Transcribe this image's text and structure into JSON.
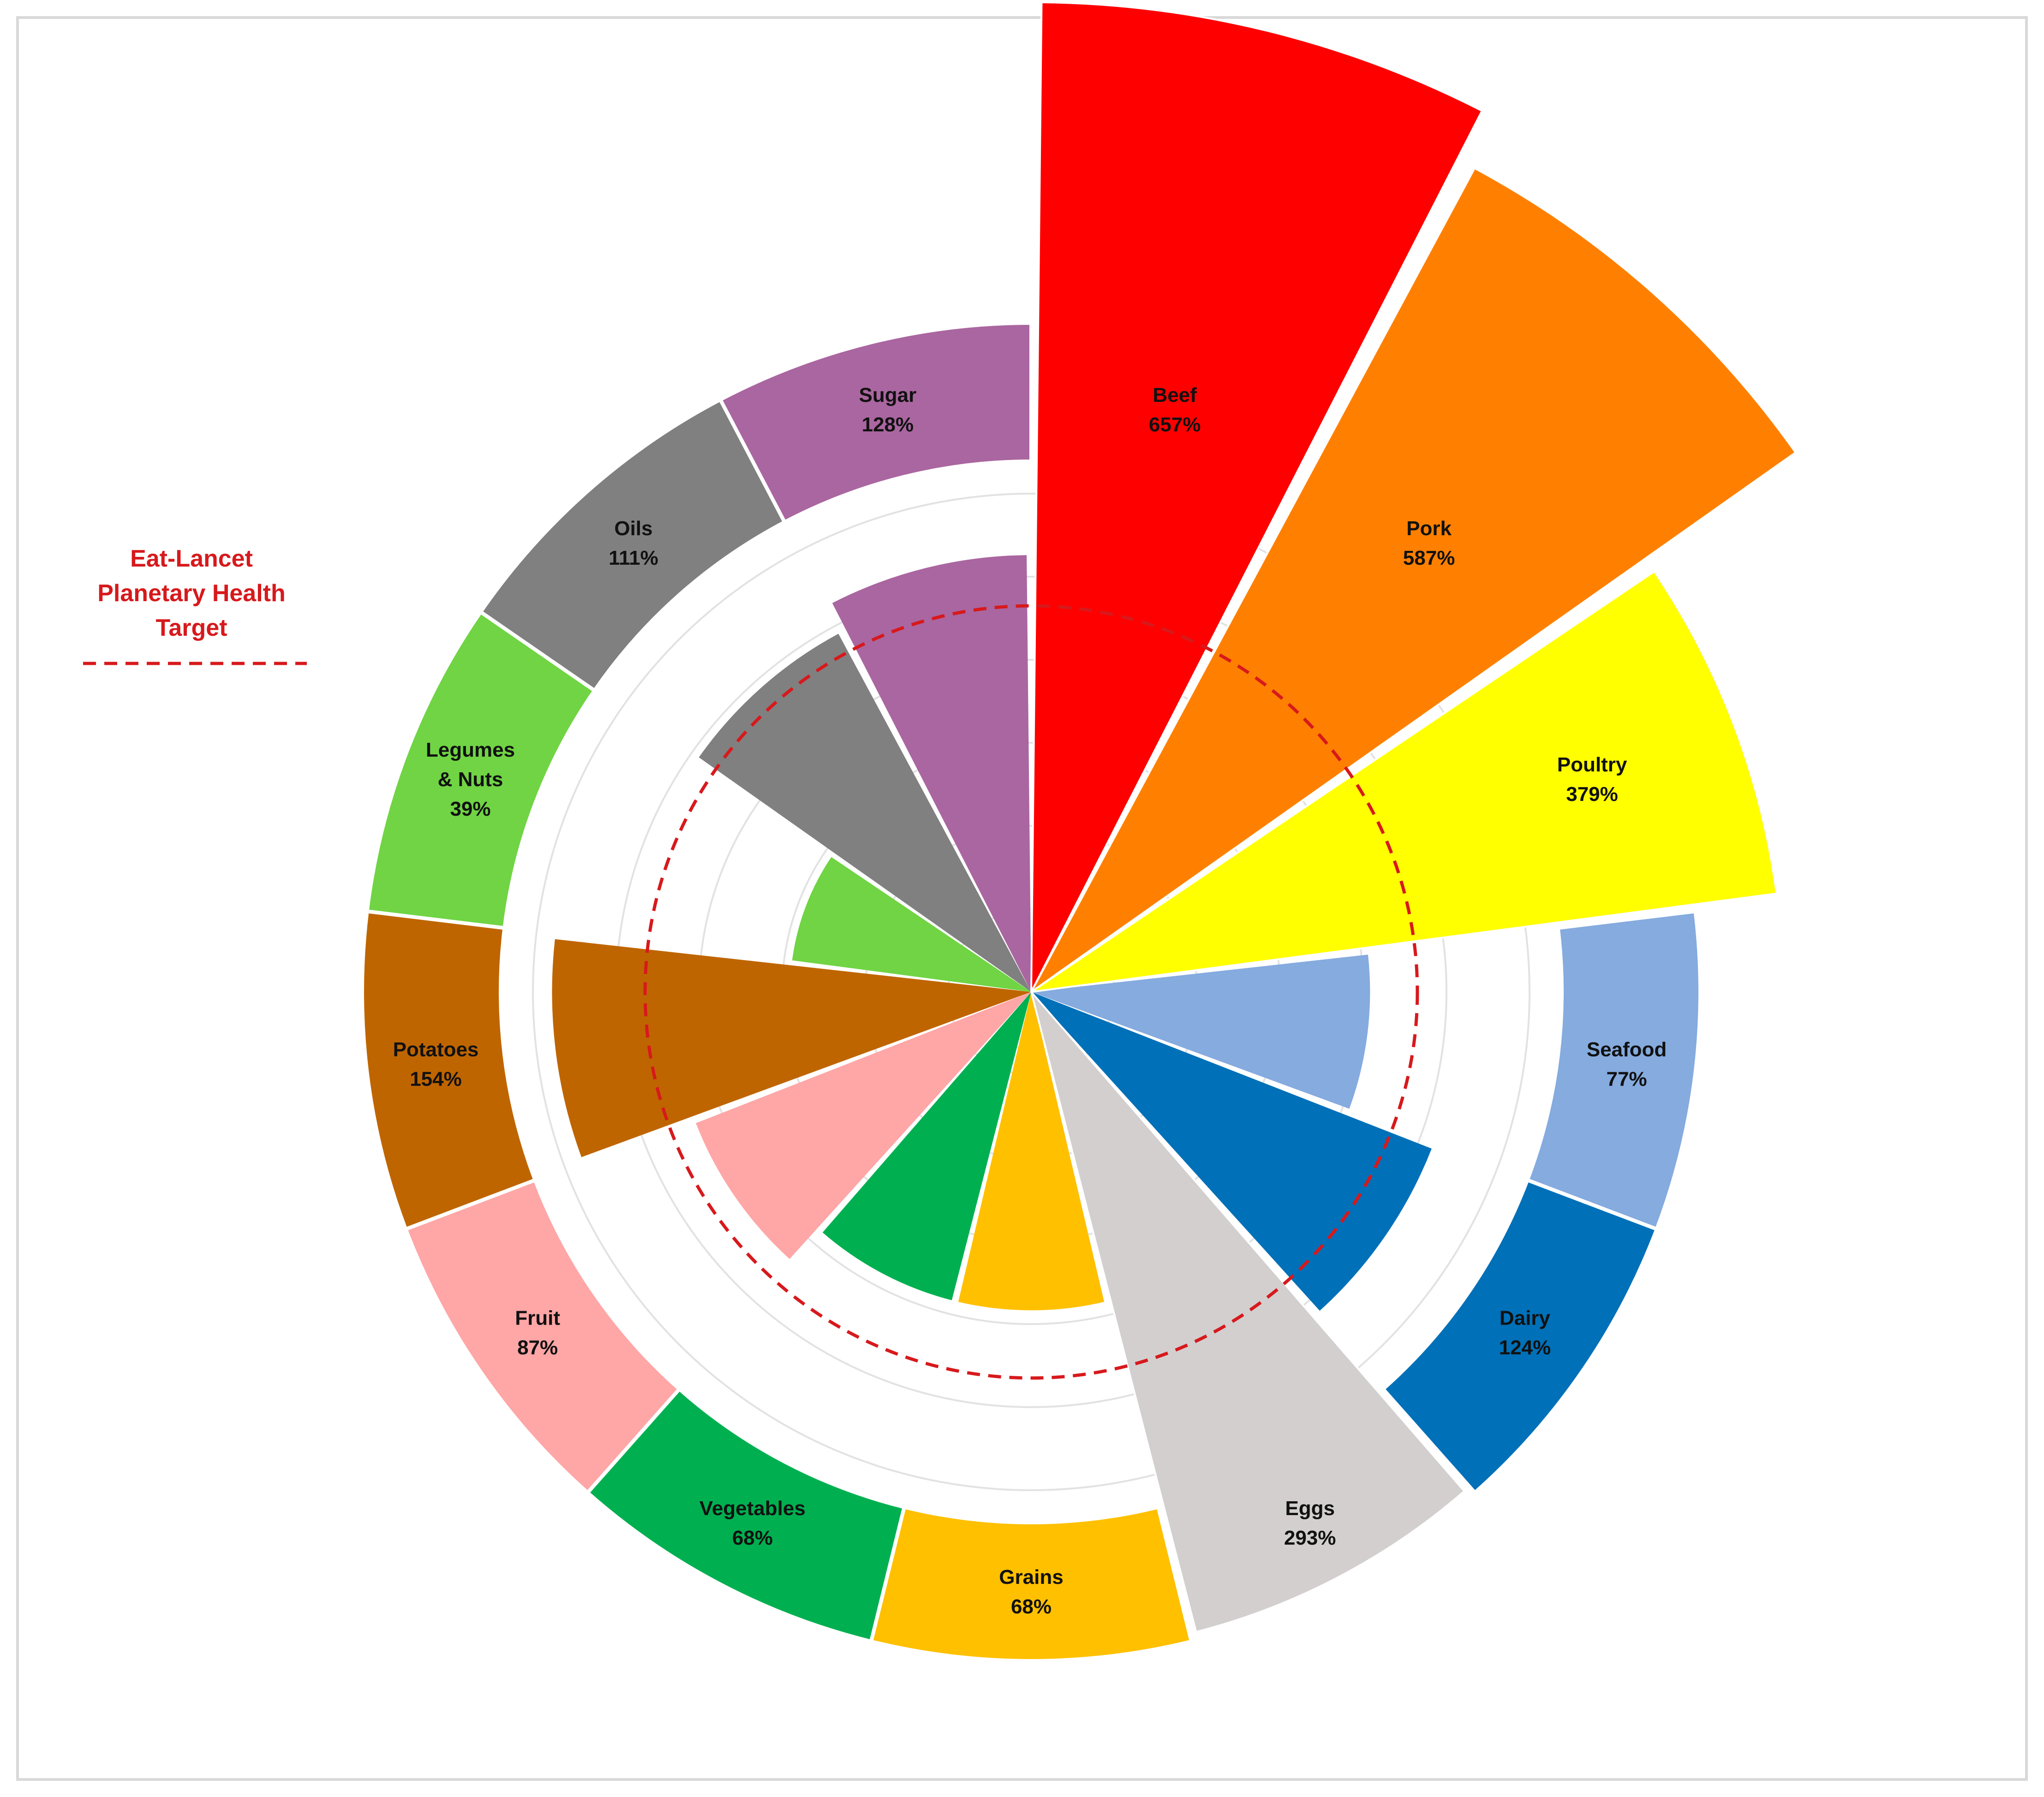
{
  "chart_data": {
    "type": "polar-bar",
    "title": "",
    "value_unit": "%",
    "reference": {
      "label_lines": [
        "Eat-Lancet",
        "Planetary Health",
        "Target"
      ],
      "value": 100,
      "color": "#d7191c",
      "style": "dashed"
    },
    "radial_max": 660,
    "gridlines": true,
    "categories": [
      {
        "name": [
          "Beef"
        ],
        "value": 657,
        "value_label": "657%",
        "color": "#ff0000"
      },
      {
        "name": [
          "Pork"
        ],
        "value": 587,
        "value_label": "587%",
        "color": "#ff8000"
      },
      {
        "name": [
          "Poultry"
        ],
        "value": 379,
        "value_label": "379%",
        "color": "#ffff00"
      },
      {
        "name": [
          "Seafood"
        ],
        "value": 77,
        "value_label": "77%",
        "color": "#85abdf"
      },
      {
        "name": [
          "Dairy"
        ],
        "value": 124,
        "value_label": "124%",
        "color": "#0070b8"
      },
      {
        "name": [
          "Eggs"
        ],
        "value": 293,
        "value_label": "293%",
        "color": "#d3cfcf"
      },
      {
        "name": [
          "Grains"
        ],
        "value": 68,
        "value_label": "68%",
        "color": "#ffc000"
      },
      {
        "name": [
          "Vegetables"
        ],
        "value": 68,
        "value_label": "68%",
        "color": "#00b050"
      },
      {
        "name": [
          "Fruit"
        ],
        "value": 87,
        "value_label": "87%",
        "color": "#ffa6a6"
      },
      {
        "name": [
          "Potatoes"
        ],
        "value": 154,
        "value_label": "154%",
        "color": "#bf6500"
      },
      {
        "name": [
          "Legumes",
          "& Nuts"
        ],
        "value": 39,
        "value_label": "39%",
        "color": "#70d444"
      },
      {
        "name": [
          "Oils"
        ],
        "value": 111,
        "value_label": "111%",
        "color": "#808080"
      },
      {
        "name": [
          "Sugar"
        ],
        "value": 128,
        "value_label": "128%",
        "color": "#aa66a0"
      }
    ]
  }
}
